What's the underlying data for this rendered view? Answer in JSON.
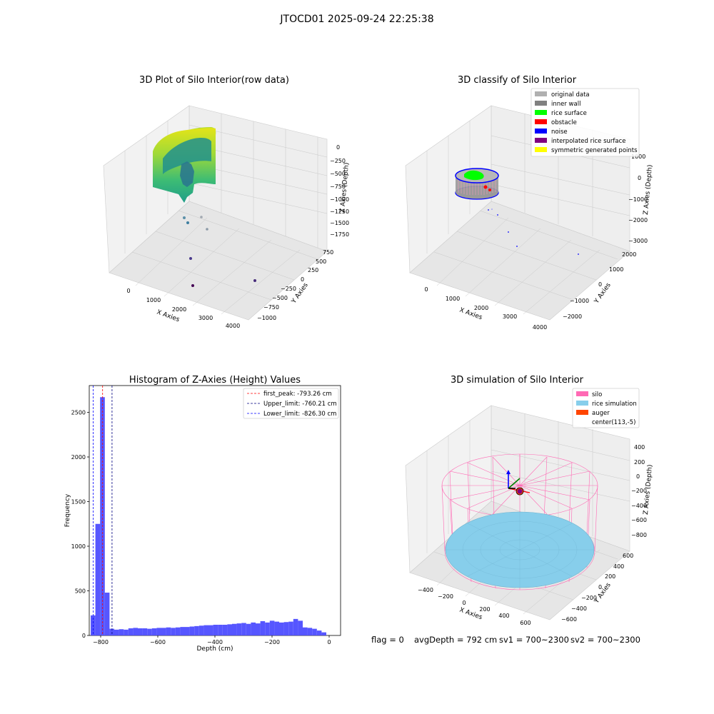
{
  "suptitle": "JTOCD01 2025-09-24 22:25:38",
  "status_line": {
    "flag": "flag = 0",
    "avg_depth": "avgDepth = 792 cm",
    "sv1": "sv1 = 700~2300",
    "sv2": "sv2 = 700~2300"
  },
  "chart_data": [
    {
      "type": "scatter",
      "projection": "3d",
      "title": "3D Plot of Silo Interior(row data)",
      "xlabel": "X Axies",
      "ylabel": "Y Axies",
      "zlabel": "Z Axies (Depth)",
      "xticks": [
        "0",
        "1000",
        "2000",
        "3000",
        "4000"
      ],
      "yticks": [
        "750",
        "500",
        "250",
        "0",
        "−250",
        "−500",
        "−750",
        "−1000"
      ],
      "zticks": [
        "0",
        "−250",
        "−500",
        "−750",
        "−1000",
        "−1250",
        "−1500",
        "−1750"
      ],
      "colormap": "viridis",
      "grid": true
    },
    {
      "type": "scatter",
      "projection": "3d",
      "title": "3D classify of Silo Interior",
      "xlabel": "X Axies",
      "ylabel": "Y Axies",
      "zlabel": "Z Axies (Depth)",
      "xticks": [
        "0",
        "1000",
        "2000",
        "3000",
        "4000"
      ],
      "yticks": [
        "2000",
        "1000",
        "0",
        "−1000",
        "−2000"
      ],
      "zticks": [
        "1000",
        "0",
        "−1000",
        "−2000",
        "−3000"
      ],
      "legend_position": "upper-right",
      "legend": [
        {
          "label": "original data",
          "color": "#b0b0b0"
        },
        {
          "label": "inner wall",
          "color": "#808080"
        },
        {
          "label": "rice surface",
          "color": "#00ff00"
        },
        {
          "label": "obstacle",
          "color": "#ff0000"
        },
        {
          "label": "noise",
          "color": "#0000ff"
        },
        {
          "label": "interpolated rice surface",
          "color": "#800080"
        },
        {
          "label": "symmetric generated points",
          "color": "#ffff00"
        }
      ],
      "grid": true
    },
    {
      "type": "histogram",
      "title": "Histogram of Z-Axies (Height) Values",
      "xlabel": "Depth (cm)",
      "ylabel": "Frequency",
      "xlim": [
        -840,
        40
      ],
      "ylim": [
        0,
        2800
      ],
      "xticks": [
        -800,
        -600,
        -400,
        -200,
        0
      ],
      "yticks": [
        0,
        500,
        1000,
        1500,
        2000,
        2500
      ],
      "bar_color": "#4d4dff",
      "bin_width": 16.5,
      "bins": [
        {
          "x0": -835.0,
          "count": 225
        },
        {
          "x0": -818.5,
          "count": 1250
        },
        {
          "x0": -802.0,
          "count": 2670
        },
        {
          "x0": -785.5,
          "count": 480
        },
        {
          "x0": -769.0,
          "count": 75
        },
        {
          "x0": -752.5,
          "count": 65
        },
        {
          "x0": -736.0,
          "count": 70
        },
        {
          "x0": -719.5,
          "count": 65
        },
        {
          "x0": -703.0,
          "count": 80
        },
        {
          "x0": -686.5,
          "count": 85
        },
        {
          "x0": -670.0,
          "count": 80
        },
        {
          "x0": -653.5,
          "count": 80
        },
        {
          "x0": -637.0,
          "count": 75
        },
        {
          "x0": -620.5,
          "count": 80
        },
        {
          "x0": -604.0,
          "count": 85
        },
        {
          "x0": -587.5,
          "count": 85
        },
        {
          "x0": -571.0,
          "count": 90
        },
        {
          "x0": -554.5,
          "count": 85
        },
        {
          "x0": -538.0,
          "count": 90
        },
        {
          "x0": -521.5,
          "count": 95
        },
        {
          "x0": -505.0,
          "count": 95
        },
        {
          "x0": -488.5,
          "count": 100
        },
        {
          "x0": -472.0,
          "count": 105
        },
        {
          "x0": -455.5,
          "count": 110
        },
        {
          "x0": -439.0,
          "count": 115
        },
        {
          "x0": -422.5,
          "count": 115
        },
        {
          "x0": -406.0,
          "count": 120
        },
        {
          "x0": -389.5,
          "count": 120
        },
        {
          "x0": -373.0,
          "count": 120
        },
        {
          "x0": -356.5,
          "count": 125
        },
        {
          "x0": -340.0,
          "count": 130
        },
        {
          "x0": -323.5,
          "count": 135
        },
        {
          "x0": -307.0,
          "count": 140
        },
        {
          "x0": -290.5,
          "count": 130
        },
        {
          "x0": -274.0,
          "count": 145
        },
        {
          "x0": -257.5,
          "count": 135
        },
        {
          "x0": -241.0,
          "count": 160
        },
        {
          "x0": -224.5,
          "count": 145
        },
        {
          "x0": -208.0,
          "count": 165
        },
        {
          "x0": -191.5,
          "count": 155
        },
        {
          "x0": -175.0,
          "count": 145
        },
        {
          "x0": -158.5,
          "count": 150
        },
        {
          "x0": -142.0,
          "count": 155
        },
        {
          "x0": -125.5,
          "count": 185
        },
        {
          "x0": -109.0,
          "count": 165
        },
        {
          "x0": -92.5,
          "count": 90
        },
        {
          "x0": -76.0,
          "count": 85
        },
        {
          "x0": -59.5,
          "count": 75
        },
        {
          "x0": -43.0,
          "count": 55
        },
        {
          "x0": -26.5,
          "count": 35
        }
      ],
      "vlines": [
        {
          "label": "first_peak: -793.26 cm",
          "x": -793.26,
          "color": "#ff0000"
        },
        {
          "label": "Upper_limit: -760.21 cm",
          "x": -760.21,
          "color": "#000080"
        },
        {
          "label": "Lower_limit: -826.30 cm",
          "x": -826.3,
          "color": "#0000ff"
        }
      ],
      "legend_position": "upper-right"
    },
    {
      "type": "surface",
      "projection": "3d",
      "title": "3D simulation of Silo Interior",
      "xlabel": "X Axies",
      "ylabel": "Y Axies",
      "zlabel": "Z Axies (Depth)",
      "xticks": [
        "−400",
        "−200",
        "0",
        "200",
        "400",
        "600"
      ],
      "yticks": [
        "600",
        "400",
        "200",
        "0",
        "−200",
        "−400",
        "−600"
      ],
      "zticks": [
        "400",
        "200",
        "0",
        "−200",
        "−400",
        "−600",
        "−800"
      ],
      "legend_position": "upper-right",
      "legend": [
        {
          "label": "silo",
          "color": "#ff69b4"
        },
        {
          "label": "rice simulation",
          "color": "#87ceeb"
        },
        {
          "label": "auger",
          "color": "#ff4500"
        },
        {
          "label": "center(113,-5)",
          "color": "#ffffff"
        }
      ],
      "grid": true
    }
  ]
}
